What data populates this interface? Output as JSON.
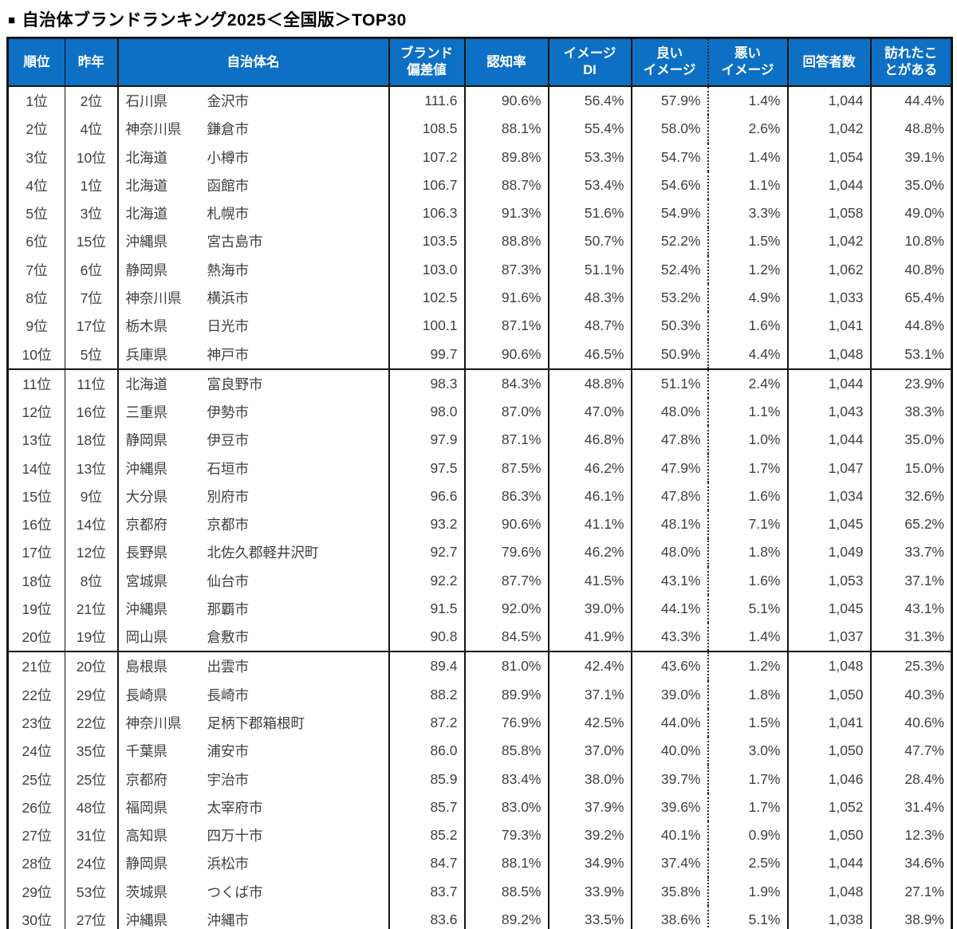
{
  "title_marker": "■",
  "title_text": "自治体ブランドランキング2025＜全国版＞TOP30",
  "colors": {
    "header_bg": "#0d70c4",
    "header_text": "#ffffff",
    "body_text": "#3f3f3f",
    "border": "#141414"
  },
  "table": {
    "headers": [
      {
        "key": "rank",
        "lines": [
          "順位"
        ]
      },
      {
        "key": "last-year",
        "lines": [
          "昨年"
        ]
      },
      {
        "key": "municipality",
        "lines": [
          "自治体名"
        ]
      },
      {
        "key": "brand-deviation",
        "lines": [
          "ブランド",
          "偏差値"
        ]
      },
      {
        "key": "recognition",
        "lines": [
          "認知率"
        ]
      },
      {
        "key": "image-di",
        "lines": [
          "イメージ",
          "DI"
        ]
      },
      {
        "key": "good-image",
        "lines": [
          "良い",
          "イメージ"
        ]
      },
      {
        "key": "bad-image",
        "lines": [
          "悪い",
          "イメージ"
        ]
      },
      {
        "key": "respondents",
        "lines": [
          "回答者数"
        ]
      },
      {
        "key": "visited",
        "lines": [
          "訪れたこ",
          "とがある"
        ]
      }
    ],
    "rows": [
      {
        "rank": "1位",
        "last_year": "2位",
        "prefecture": "石川県",
        "city": "金沢市",
        "deviation": "111.6",
        "recognition": "90.6%",
        "image_di": "56.4%",
        "good_image": "57.9%",
        "bad_image": "1.4%",
        "respondents": "1,044",
        "visited": "44.4%"
      },
      {
        "rank": "2位",
        "last_year": "4位",
        "prefecture": "神奈川県",
        "city": "鎌倉市",
        "deviation": "108.5",
        "recognition": "88.1%",
        "image_di": "55.4%",
        "good_image": "58.0%",
        "bad_image": "2.6%",
        "respondents": "1,042",
        "visited": "48.8%"
      },
      {
        "rank": "3位",
        "last_year": "10位",
        "prefecture": "北海道",
        "city": "小樽市",
        "deviation": "107.2",
        "recognition": "89.8%",
        "image_di": "53.3%",
        "good_image": "54.7%",
        "bad_image": "1.4%",
        "respondents": "1,054",
        "visited": "39.1%"
      },
      {
        "rank": "4位",
        "last_year": "1位",
        "prefecture": "北海道",
        "city": "函館市",
        "deviation": "106.7",
        "recognition": "88.7%",
        "image_di": "53.4%",
        "good_image": "54.6%",
        "bad_image": "1.1%",
        "respondents": "1,044",
        "visited": "35.0%"
      },
      {
        "rank": "5位",
        "last_year": "3位",
        "prefecture": "北海道",
        "city": "札幌市",
        "deviation": "106.3",
        "recognition": "91.3%",
        "image_di": "51.6%",
        "good_image": "54.9%",
        "bad_image": "3.3%",
        "respondents": "1,058",
        "visited": "49.0%"
      },
      {
        "rank": "6位",
        "last_year": "15位",
        "prefecture": "沖縄県",
        "city": "宮古島市",
        "deviation": "103.5",
        "recognition": "88.8%",
        "image_di": "50.7%",
        "good_image": "52.2%",
        "bad_image": "1.5%",
        "respondents": "1,042",
        "visited": "10.8%"
      },
      {
        "rank": "7位",
        "last_year": "6位",
        "prefecture": "静岡県",
        "city": "熱海市",
        "deviation": "103.0",
        "recognition": "87.3%",
        "image_di": "51.1%",
        "good_image": "52.4%",
        "bad_image": "1.2%",
        "respondents": "1,062",
        "visited": "40.8%"
      },
      {
        "rank": "8位",
        "last_year": "7位",
        "prefecture": "神奈川県",
        "city": "横浜市",
        "deviation": "102.5",
        "recognition": "91.6%",
        "image_di": "48.3%",
        "good_image": "53.2%",
        "bad_image": "4.9%",
        "respondents": "1,033",
        "visited": "65.4%"
      },
      {
        "rank": "9位",
        "last_year": "17位",
        "prefecture": "栃木県",
        "city": "日光市",
        "deviation": "100.1",
        "recognition": "87.1%",
        "image_di": "48.7%",
        "good_image": "50.3%",
        "bad_image": "1.6%",
        "respondents": "1,041",
        "visited": "44.8%"
      },
      {
        "rank": "10位",
        "last_year": "5位",
        "prefecture": "兵庫県",
        "city": "神戸市",
        "deviation": "99.7",
        "recognition": "90.6%",
        "image_di": "46.5%",
        "good_image": "50.9%",
        "bad_image": "4.4%",
        "respondents": "1,048",
        "visited": "53.1%"
      },
      {
        "rank": "11位",
        "last_year": "11位",
        "prefecture": "北海道",
        "city": "富良野市",
        "deviation": "98.3",
        "recognition": "84.3%",
        "image_di": "48.8%",
        "good_image": "51.1%",
        "bad_image": "2.4%",
        "respondents": "1,044",
        "visited": "23.9%"
      },
      {
        "rank": "12位",
        "last_year": "16位",
        "prefecture": "三重県",
        "city": "伊勢市",
        "deviation": "98.0",
        "recognition": "87.0%",
        "image_di": "47.0%",
        "good_image": "48.0%",
        "bad_image": "1.1%",
        "respondents": "1,043",
        "visited": "38.3%"
      },
      {
        "rank": "13位",
        "last_year": "18位",
        "prefecture": "静岡県",
        "city": "伊豆市",
        "deviation": "97.9",
        "recognition": "87.1%",
        "image_di": "46.8%",
        "good_image": "47.8%",
        "bad_image": "1.0%",
        "respondents": "1,044",
        "visited": "35.0%"
      },
      {
        "rank": "14位",
        "last_year": "13位",
        "prefecture": "沖縄県",
        "city": "石垣市",
        "deviation": "97.5",
        "recognition": "87.5%",
        "image_di": "46.2%",
        "good_image": "47.9%",
        "bad_image": "1.7%",
        "respondents": "1,047",
        "visited": "15.0%"
      },
      {
        "rank": "15位",
        "last_year": "9位",
        "prefecture": "大分県",
        "city": "別府市",
        "deviation": "96.6",
        "recognition": "86.3%",
        "image_di": "46.1%",
        "good_image": "47.8%",
        "bad_image": "1.6%",
        "respondents": "1,034",
        "visited": "32.6%"
      },
      {
        "rank": "16位",
        "last_year": "14位",
        "prefecture": "京都府",
        "city": "京都市",
        "deviation": "93.2",
        "recognition": "90.6%",
        "image_di": "41.1%",
        "good_image": "48.1%",
        "bad_image": "7.1%",
        "respondents": "1,045",
        "visited": "65.2%"
      },
      {
        "rank": "17位",
        "last_year": "12位",
        "prefecture": "長野県",
        "city": "北佐久郡軽井沢町",
        "deviation": "92.7",
        "recognition": "79.6%",
        "image_di": "46.2%",
        "good_image": "48.0%",
        "bad_image": "1.8%",
        "respondents": "1,049",
        "visited": "33.7%"
      },
      {
        "rank": "18位",
        "last_year": "8位",
        "prefecture": "宮城県",
        "city": "仙台市",
        "deviation": "92.2",
        "recognition": "87.7%",
        "image_di": "41.5%",
        "good_image": "43.1%",
        "bad_image": "1.6%",
        "respondents": "1,053",
        "visited": "37.1%"
      },
      {
        "rank": "19位",
        "last_year": "21位",
        "prefecture": "沖縄県",
        "city": "那覇市",
        "deviation": "91.5",
        "recognition": "92.0%",
        "image_di": "39.0%",
        "good_image": "44.1%",
        "bad_image": "5.1%",
        "respondents": "1,045",
        "visited": "43.1%"
      },
      {
        "rank": "20位",
        "last_year": "19位",
        "prefecture": "岡山県",
        "city": "倉敷市",
        "deviation": "90.8",
        "recognition": "84.5%",
        "image_di": "41.9%",
        "good_image": "43.3%",
        "bad_image": "1.4%",
        "respondents": "1,037",
        "visited": "31.3%"
      },
      {
        "rank": "21位",
        "last_year": "20位",
        "prefecture": "島根県",
        "city": "出雲市",
        "deviation": "89.4",
        "recognition": "81.0%",
        "image_di": "42.4%",
        "good_image": "43.6%",
        "bad_image": "1.2%",
        "respondents": "1,048",
        "visited": "25.3%"
      },
      {
        "rank": "22位",
        "last_year": "29位",
        "prefecture": "長崎県",
        "city": "長崎市",
        "deviation": "88.2",
        "recognition": "89.9%",
        "image_di": "37.1%",
        "good_image": "39.0%",
        "bad_image": "1.8%",
        "respondents": "1,050",
        "visited": "40.3%"
      },
      {
        "rank": "23位",
        "last_year": "22位",
        "prefecture": "神奈川県",
        "city": "足柄下郡箱根町",
        "deviation": "87.2",
        "recognition": "76.9%",
        "image_di": "42.5%",
        "good_image": "44.0%",
        "bad_image": "1.5%",
        "respondents": "1,041",
        "visited": "40.6%"
      },
      {
        "rank": "24位",
        "last_year": "35位",
        "prefecture": "千葉県",
        "city": "浦安市",
        "deviation": "86.0",
        "recognition": "85.8%",
        "image_di": "37.0%",
        "good_image": "40.0%",
        "bad_image": "3.0%",
        "respondents": "1,050",
        "visited": "47.7%"
      },
      {
        "rank": "25位",
        "last_year": "25位",
        "prefecture": "京都府",
        "city": "宇治市",
        "deviation": "85.9",
        "recognition": "83.4%",
        "image_di": "38.0%",
        "good_image": "39.7%",
        "bad_image": "1.7%",
        "respondents": "1,046",
        "visited": "28.4%"
      },
      {
        "rank": "26位",
        "last_year": "48位",
        "prefecture": "福岡県",
        "city": "太宰府市",
        "deviation": "85.7",
        "recognition": "83.0%",
        "image_di": "37.9%",
        "good_image": "39.6%",
        "bad_image": "1.7%",
        "respondents": "1,052",
        "visited": "31.4%"
      },
      {
        "rank": "27位",
        "last_year": "31位",
        "prefecture": "高知県",
        "city": "四万十市",
        "deviation": "85.2",
        "recognition": "79.3%",
        "image_di": "39.2%",
        "good_image": "40.1%",
        "bad_image": "0.9%",
        "respondents": "1,050",
        "visited": "12.3%"
      },
      {
        "rank": "28位",
        "last_year": "24位",
        "prefecture": "静岡県",
        "city": "浜松市",
        "deviation": "84.7",
        "recognition": "88.1%",
        "image_di": "34.9%",
        "good_image": "37.4%",
        "bad_image": "2.5%",
        "respondents": "1,044",
        "visited": "34.6%"
      },
      {
        "rank": "29位",
        "last_year": "53位",
        "prefecture": "茨城県",
        "city": "つくば市",
        "deviation": "83.7",
        "recognition": "88.5%",
        "image_di": "33.9%",
        "good_image": "35.8%",
        "bad_image": "1.9%",
        "respondents": "1,048",
        "visited": "27.1%"
      },
      {
        "rank": "30位",
        "last_year": "27位",
        "prefecture": "沖縄県",
        "city": "沖縄市",
        "deviation": "83.6",
        "recognition": "89.2%",
        "image_di": "33.5%",
        "good_image": "38.6%",
        "bad_image": "5.1%",
        "respondents": "1,038",
        "visited": "38.9%"
      }
    ],
    "group_size": 10
  }
}
